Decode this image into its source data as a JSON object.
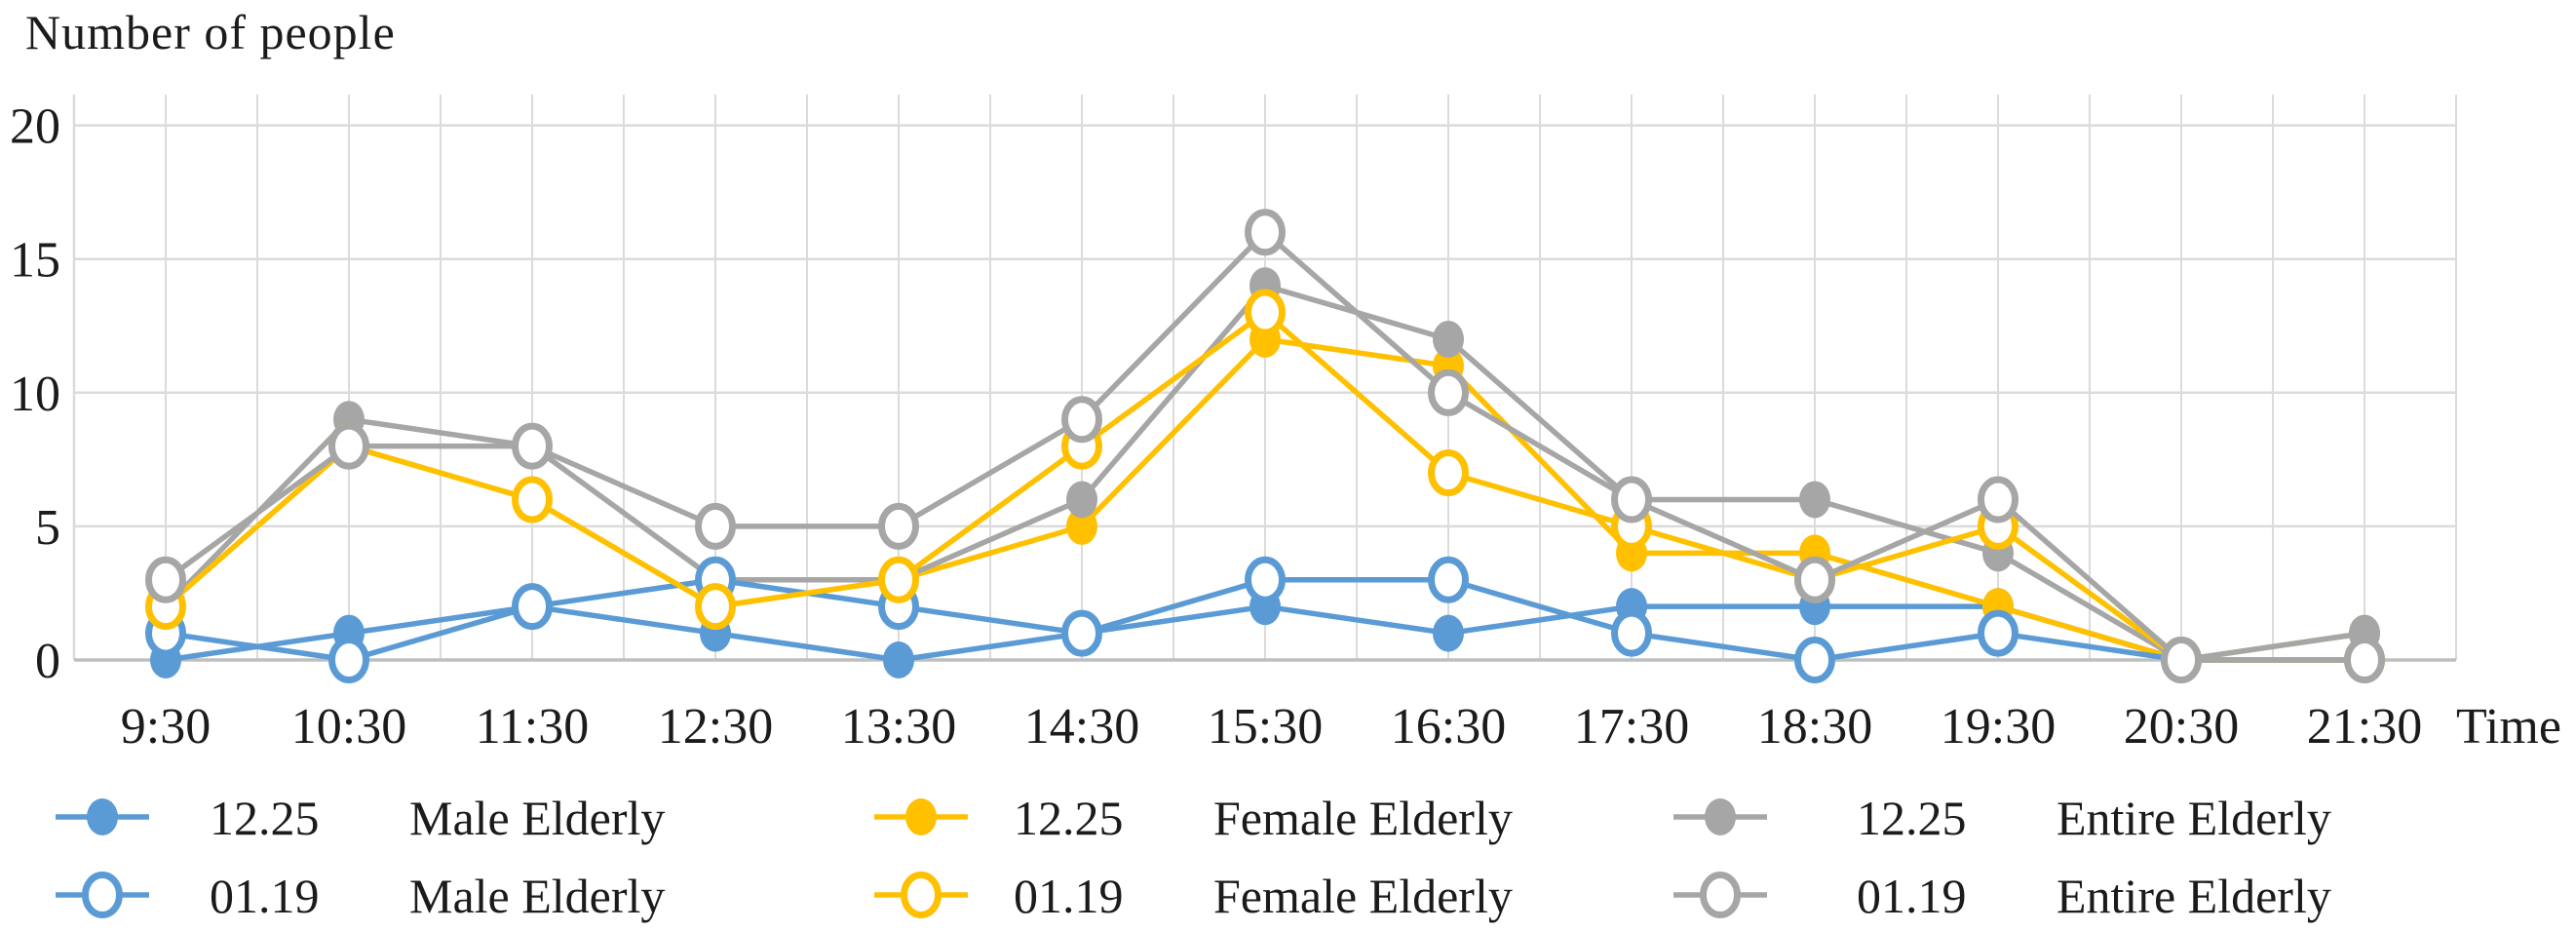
{
  "chart_data": {
    "type": "line",
    "title": "Number of people",
    "xlabel": "Time",
    "ylabel": "",
    "ylim": [
      0,
      20
    ],
    "yticks": [
      0,
      5,
      10,
      15,
      20
    ],
    "grid": true,
    "legend_position": "bottom",
    "categories": [
      "9:30",
      "10:30",
      "11:30",
      "12:30",
      "13:30",
      "14:30",
      "15:30",
      "16:30",
      "17:30",
      "18:30",
      "19:30",
      "20:30",
      "21:30"
    ],
    "series": [
      {
        "date": "12.25",
        "label": "Male Elderly",
        "name": "12.25 Male Elderly",
        "color": "#5B9BD5",
        "marker": "filled",
        "values": [
          0,
          1,
          2,
          1,
          0,
          1,
          2,
          1,
          2,
          2,
          2,
          0,
          0
        ]
      },
      {
        "date": "12.25",
        "label": "Female Elderly",
        "name": "12.25 Female Elderly",
        "color": "#FFC000",
        "marker": "filled",
        "values": [
          2,
          8,
          6,
          2,
          3,
          5,
          12,
          11,
          4,
          4,
          2,
          0,
          1
        ]
      },
      {
        "date": "12.25",
        "label": "Entire Elderly",
        "name": "12.25 Entire Elderly",
        "color": "#A6A6A6",
        "marker": "filled",
        "values": [
          2,
          9,
          8,
          3,
          3,
          6,
          14,
          12,
          6,
          6,
          4,
          0,
          1
        ]
      },
      {
        "date": "01.19",
        "label": "Male Elderly",
        "name": "01.19 Male Elderly",
        "color": "#5B9BD5",
        "marker": "open",
        "values": [
          1,
          0,
          2,
          3,
          2,
          1,
          3,
          3,
          1,
          0,
          1,
          0,
          0
        ]
      },
      {
        "date": "01.19",
        "label": "Female Elderly",
        "name": "01.19 Female Elderly",
        "color": "#FFC000",
        "marker": "open",
        "values": [
          2,
          8,
          6,
          2,
          3,
          8,
          13,
          7,
          5,
          3,
          5,
          0,
          0
        ]
      },
      {
        "date": "01.19",
        "label": "Entire Elderly",
        "name": "01.19 Entire Elderly",
        "color": "#A6A6A6",
        "marker": "open",
        "values": [
          3,
          8,
          8,
          5,
          5,
          9,
          16,
          10,
          6,
          3,
          6,
          0,
          0
        ]
      }
    ],
    "colors": {
      "male": "#5B9BD5",
      "female": "#FFC000",
      "entire": "#A6A6A6",
      "gridline": "#DBDBDB",
      "axis_line": "#BFBFBF",
      "text": "#1b1b1b",
      "background": "#ffffff"
    }
  }
}
